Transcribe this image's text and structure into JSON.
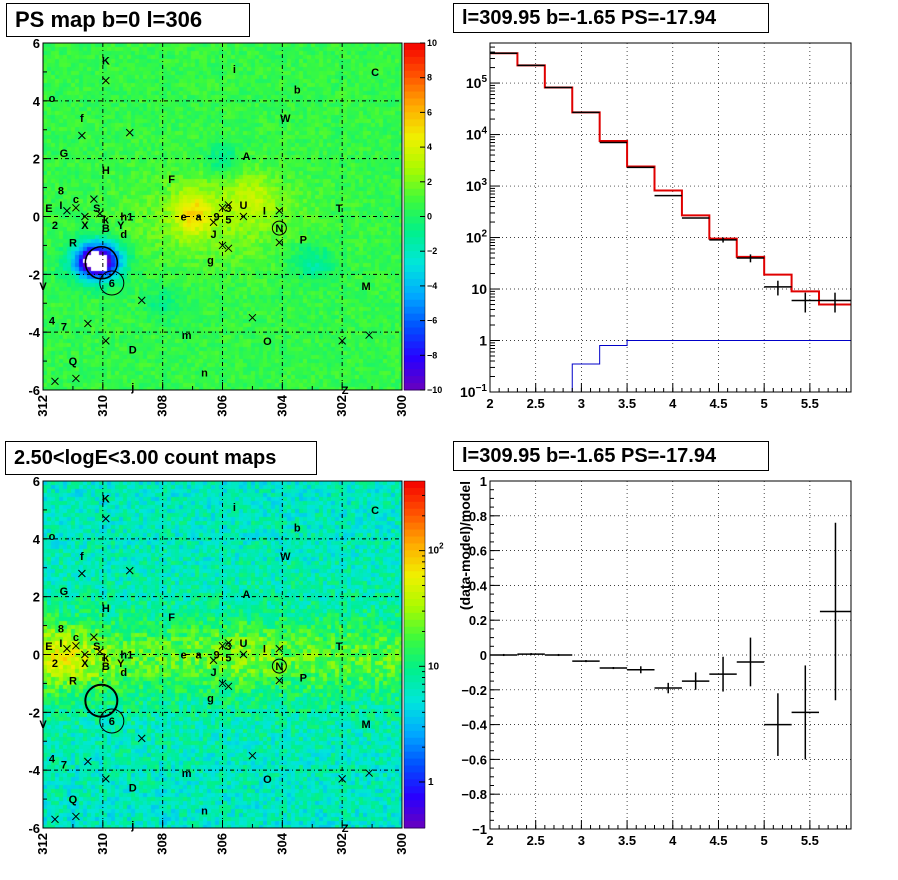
{
  "chart_data": [
    {
      "type": "heatmap",
      "title": "PS map b=0 l=306",
      "x_ticks": [
        "312",
        "310",
        "308",
        "306",
        "304",
        "302",
        "300"
      ],
      "y_ticks": [
        "6",
        "4",
        "2",
        "0",
        "-2",
        "-4",
        "-6"
      ],
      "xlim": [
        312,
        300
      ],
      "ylim": [
        -6,
        6
      ],
      "colorbar": {
        "scale": "linear",
        "range": [
          -10,
          10
        ],
        "ticks": [
          "10",
          "8",
          "6",
          "4",
          "2",
          "0",
          "-2",
          "-4",
          "-6",
          "-8",
          "-10"
        ]
      }
    },
    {
      "type": "line",
      "title": "l=309.95 b=-1.65 PS=-17.94",
      "xlim": [
        2,
        5.95
      ],
      "ylim": [
        0.1,
        600000
      ],
      "yscale": "log",
      "grid": true,
      "x_ticks": [
        "2",
        "2.5",
        "3",
        "3.5",
        "4",
        "4.5",
        "5",
        "5.5"
      ],
      "y_ticks": [
        {
          "value": 100000,
          "base": "10",
          "exp": "5"
        },
        {
          "value": 10000,
          "base": "10",
          "exp": "4"
        },
        {
          "value": 1000,
          "base": "10",
          "exp": "3"
        },
        {
          "value": 100,
          "base": "10",
          "exp": "2"
        },
        {
          "value": 10,
          "base": "10",
          "exp": ""
        },
        {
          "value": 1,
          "base": "1",
          "exp": ""
        },
        {
          "value": 0.1,
          "base": "10",
          "exp": "−1"
        }
      ],
      "bin_edges": [
        2.0,
        2.3,
        2.6,
        2.9,
        3.2,
        3.5,
        3.8,
        4.1,
        4.4,
        4.7,
        5.0,
        5.3,
        5.6,
        5.95
      ],
      "series": [
        {
          "color": "#e00000",
          "values": [
            380000,
            220000,
            82000,
            27000,
            7500,
            2400,
            820,
            270,
            95,
            42,
            19,
            9,
            5
          ]
        },
        {
          "color": "#0000c8",
          "values": [
            0.05,
            0.05,
            0.05,
            0.35,
            0.8,
            1,
            1,
            1,
            1,
            1,
            1,
            1,
            1
          ]
        },
        {
          "color": "#000000",
          "values": [
            380000,
            220000,
            82000,
            27000,
            7000,
            2300,
            650,
            240,
            90,
            40,
            11,
            6,
            6
          ],
          "errors": [
            0,
            0,
            0,
            0,
            0,
            0,
            0,
            0,
            10,
            7,
            3.5,
            2.5,
            2.5
          ]
        }
      ]
    },
    {
      "type": "heatmap",
      "title": "2.50<logE<3.00 count maps",
      "x_ticks": [
        "312",
        "310",
        "308",
        "306",
        "304",
        "302",
        "300"
      ],
      "y_ticks": [
        "6",
        "4",
        "2",
        "0",
        "-2",
        "-4",
        "-6"
      ],
      "xlim": [
        312,
        300
      ],
      "ylim": [
        -6,
        6
      ],
      "colorbar": {
        "scale": "log",
        "range": [
          0.4,
          400
        ],
        "ticks": [
          {
            "value": 100,
            "base": "10",
            "exp": "2"
          },
          {
            "value": 10,
            "base": "10",
            "exp": ""
          },
          {
            "value": 1,
            "base": "1",
            "exp": ""
          }
        ]
      }
    },
    {
      "type": "scatter",
      "title": "l=309.95 b=-1.65 PS=-17.94",
      "ylabel": "(data-model)/model",
      "xlim": [
        2,
        5.95
      ],
      "ylim": [
        -1,
        1
      ],
      "grid": true,
      "x_ticks": [
        "2",
        "2.5",
        "3",
        "3.5",
        "4",
        "4.5",
        "5",
        "5.5"
      ],
      "y_ticks": [
        "1",
        "0.8",
        "0.6",
        "0.4",
        "0.2",
        "0",
        "−0.2",
        "−0.4",
        "−0.6",
        "−0.8",
        "−1"
      ],
      "points": [
        {
          "x": 2.15,
          "y": 0.0,
          "xerr": 0.15,
          "yerr": 0.0
        },
        {
          "x": 2.45,
          "y": 0.005,
          "xerr": 0.15,
          "yerr": 0.0
        },
        {
          "x": 2.75,
          "y": 0.0,
          "xerr": 0.15,
          "yerr": 0.0
        },
        {
          "x": 3.05,
          "y": -0.035,
          "xerr": 0.15,
          "yerr": 0.0
        },
        {
          "x": 3.35,
          "y": -0.075,
          "xerr": 0.15,
          "yerr": 0.0
        },
        {
          "x": 3.65,
          "y": -0.085,
          "xerr": 0.15,
          "yerr": 0.02
        },
        {
          "x": 3.95,
          "y": -0.19,
          "xerr": 0.15,
          "yerr": 0.03
        },
        {
          "x": 4.25,
          "y": -0.15,
          "xerr": 0.15,
          "yerr": 0.05
        },
        {
          "x": 4.55,
          "y": -0.11,
          "xerr": 0.15,
          "yerr": 0.1
        },
        {
          "x": 4.85,
          "y": -0.04,
          "xerr": 0.15,
          "yerr": 0.14
        },
        {
          "x": 5.15,
          "y": -0.4,
          "xerr": 0.15,
          "yerr": 0.18
        },
        {
          "x": 5.45,
          "y": -0.33,
          "xerr": 0.15,
          "yerr": 0.27
        },
        {
          "x": 5.78,
          "y": 0.25,
          "xerr": 0.17,
          "yerr": 0.51
        }
      ]
    }
  ],
  "sky_labels": [
    {
      "t": "K",
      "l": 309.9,
      "b": 5.4
    },
    {
      "t": "i",
      "l": 305.6,
      "b": 5.1
    },
    {
      "t": "C",
      "l": 300.9,
      "b": 5.0
    },
    {
      "t": "o",
      "l": 311.7,
      "b": 4.1
    },
    {
      "t": "b",
      "l": 303.5,
      "b": 4.4
    },
    {
      "t": "W",
      "l": 303.9,
      "b": 3.4
    },
    {
      "t": "f",
      "l": 310.7,
      "b": 3.4
    },
    {
      "t": "A",
      "l": 305.2,
      "b": 2.1
    },
    {
      "t": "H",
      "l": 309.9,
      "b": 1.6
    },
    {
      "t": "G",
      "l": 311.3,
      "b": 2.2
    },
    {
      "t": "F",
      "l": 307.7,
      "b": 1.3
    },
    {
      "t": "8",
      "l": 311.4,
      "b": 0.9
    },
    {
      "t": "I",
      "l": 311.4,
      "b": 0.4
    },
    {
      "t": "c",
      "l": 310.9,
      "b": 0.6
    },
    {
      "t": "E",
      "l": 311.8,
      "b": 0.3
    },
    {
      "t": "S",
      "l": 310.2,
      "b": 0.3
    },
    {
      "t": "U",
      "l": 305.3,
      "b": 0.4
    },
    {
      "t": "T",
      "l": 302.1,
      "b": 0.3
    },
    {
      "t": "3",
      "l": 305.8,
      "b": 0.3
    },
    {
      "t": "I",
      "l": 304.6,
      "b": 0.2
    },
    {
      "t": "e",
      "l": 307.3,
      "b": 0.0
    },
    {
      "t": "a",
      "l": 306.8,
      "b": 0.0
    },
    {
      "t": "9",
      "l": 306.2,
      "b": -0.0
    },
    {
      "t": "5",
      "l": 305.8,
      "b": -0.1
    },
    {
      "t": "h1",
      "l": 309.2,
      "b": 0.0
    },
    {
      "t": "k",
      "l": 309.9,
      "b": -0.1
    },
    {
      "t": "X",
      "l": 310.6,
      "b": -0.3
    },
    {
      "t": "B",
      "l": 309.9,
      "b": -0.4
    },
    {
      "t": "Y",
      "l": 309.4,
      "b": -0.3
    },
    {
      "t": "2",
      "l": 311.6,
      "b": -0.3
    },
    {
      "t": "N",
      "l": 304.1,
      "b": -0.4
    },
    {
      "t": "J",
      "l": 306.3,
      "b": -0.6
    },
    {
      "t": "d",
      "l": 309.3,
      "b": -0.6
    },
    {
      "t": "P",
      "l": 303.3,
      "b": -0.8
    },
    {
      "t": "R",
      "l": 311.0,
      "b": -0.9
    },
    {
      "t": "g",
      "l": 306.4,
      "b": -1.5
    },
    {
      "t": "6",
      "l": 309.7,
      "b": -2.3
    },
    {
      "t": "M",
      "l": 301.2,
      "b": -2.4
    },
    {
      "t": "V",
      "l": 312.0,
      "b": -2.4
    },
    {
      "t": "4",
      "l": 311.7,
      "b": -3.6
    },
    {
      "t": "7",
      "l": 311.3,
      "b": -3.8
    },
    {
      "t": "m",
      "l": 307.2,
      "b": -4.1
    },
    {
      "t": "O",
      "l": 304.5,
      "b": -4.3
    },
    {
      "t": "D",
      "l": 309.0,
      "b": -4.6
    },
    {
      "t": "Q",
      "l": 311.0,
      "b": -5.0
    },
    {
      "t": "n",
      "l": 306.6,
      "b": -5.4
    },
    {
      "t": "j",
      "l": 309.0,
      "b": -5.9
    },
    {
      "t": "Z",
      "l": 301.9,
      "b": -6.0
    }
  ],
  "sky_crosses": [
    [
      309.9,
      4.7
    ],
    [
      310.7,
      2.8
    ],
    [
      309.1,
      2.9
    ],
    [
      310.6,
      0.0
    ],
    [
      310.1,
      0.1
    ],
    [
      310.3,
      0.6
    ],
    [
      310.9,
      0.3
    ],
    [
      311.2,
      0.2
    ],
    [
      306.0,
      0.3
    ],
    [
      305.8,
      0.4
    ],
    [
      306.3,
      -0.2
    ],
    [
      305.8,
      -1.1
    ],
    [
      306.0,
      -1.0
    ],
    [
      304.1,
      -0.9
    ],
    [
      304.1,
      0.2
    ],
    [
      305.3,
      0.0
    ],
    [
      308.7,
      -2.9
    ],
    [
      305.0,
      -3.5
    ],
    [
      309.9,
      -4.3
    ],
    [
      310.5,
      -3.7
    ],
    [
      302.0,
      -4.3
    ],
    [
      301.1,
      -4.1
    ],
    [
      310.9,
      -5.6
    ],
    [
      311.6,
      -5.7
    ]
  ]
}
